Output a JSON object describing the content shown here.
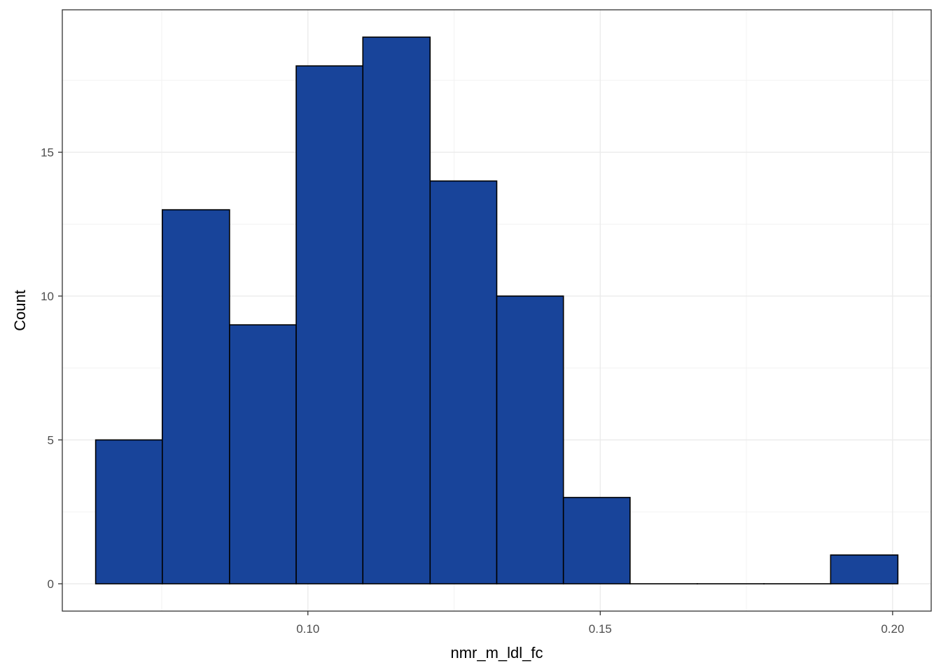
{
  "chart_data": {
    "type": "bar",
    "subtype": "histogram",
    "title": "",
    "xlabel": "nmr_m_ldl_fc",
    "ylabel": "Count",
    "bin_width": 0.01143,
    "bins": [
      {
        "x_start": 0.0637,
        "x_end": 0.0751,
        "count": 5
      },
      {
        "x_start": 0.0751,
        "x_end": 0.0866,
        "count": 13
      },
      {
        "x_start": 0.0866,
        "x_end": 0.098,
        "count": 9
      },
      {
        "x_start": 0.098,
        "x_end": 0.1094,
        "count": 18
      },
      {
        "x_start": 0.1094,
        "x_end": 0.1209,
        "count": 19
      },
      {
        "x_start": 0.1209,
        "x_end": 0.1323,
        "count": 14
      },
      {
        "x_start": 0.1323,
        "x_end": 0.1437,
        "count": 10
      },
      {
        "x_start": 0.1437,
        "x_end": 0.1551,
        "count": 3
      },
      {
        "x_start": 0.1551,
        "x_end": 0.1666,
        "count": 0
      },
      {
        "x_start": 0.1666,
        "x_end": 0.178,
        "count": 0
      },
      {
        "x_start": 0.178,
        "x_end": 0.1894,
        "count": 0
      },
      {
        "x_start": 0.1894,
        "x_end": 0.2009,
        "count": 1
      }
    ],
    "xlim": [
      0.058,
      0.2066
    ],
    "ylim": [
      -0.95,
      19.95
    ],
    "x_ticks": [
      0.1,
      0.15,
      0.2
    ],
    "x_tick_labels": [
      "0.10",
      "0.15",
      "0.20"
    ],
    "y_ticks": [
      0,
      5,
      10,
      15
    ],
    "y_tick_labels": [
      "0",
      "5",
      "10",
      "15"
    ],
    "x_minor_ticks": [
      0.075,
      0.125,
      0.175
    ],
    "y_minor_ticks": [
      2.5,
      7.5,
      12.5,
      17.5
    ],
    "grid": true,
    "colors": {
      "bar_fill": "#18449A",
      "bar_stroke": "#000000",
      "grid_major": "#EBEBEB",
      "grid_minor": "#F2F2F2",
      "panel_border": "#333333",
      "tick_label": "#4D4D4D"
    }
  }
}
